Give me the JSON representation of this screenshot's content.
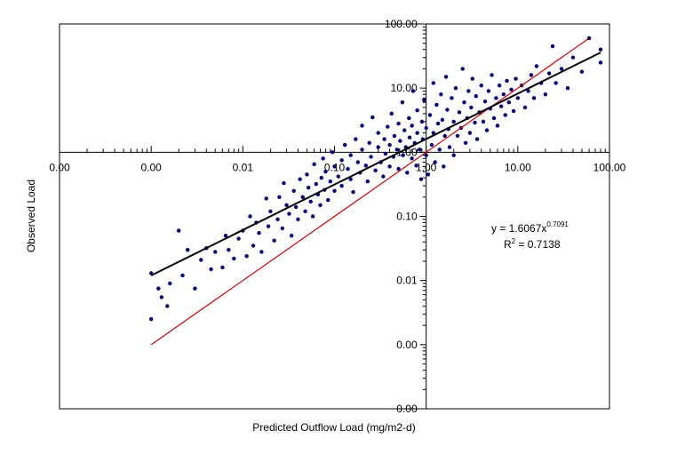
{
  "chart_data": {
    "type": "scatter",
    "title": "",
    "xlabel": "Predicted Outflow Load  (mg/m2-d)",
    "ylabel": "Observed Load",
    "x_scale": "log",
    "y_scale": "log",
    "xlim": [
      0.0001,
      100
    ],
    "ylim": [
      0.0001,
      100
    ],
    "x_ticks": [
      0.0001,
      0.001,
      0.01,
      0.1,
      1,
      10,
      100
    ],
    "x_tick_labels": [
      "0.00",
      "0.00",
      "0.01",
      "0.10",
      "1.00",
      "10.00",
      "100.00"
    ],
    "y_ticks": [
      0.0001,
      0.001,
      0.01,
      0.1,
      1,
      10,
      100
    ],
    "y_tick_labels": [
      "0.00",
      "0.00",
      "0.01",
      "0.10",
      "1.00",
      "10.00",
      "100.00"
    ],
    "grid": false,
    "axes_cross_at": [
      1,
      1
    ],
    "marker_color": "#000080",
    "fit_line": {
      "type": "power",
      "a": 1.6067,
      "b": 0.7091,
      "x_range": [
        0.001,
        80
      ],
      "color": "#000000"
    },
    "identity_line": {
      "x_range": [
        0.001,
        60
      ],
      "color": "#d00000"
    },
    "annotation": {
      "equation_prefix": "y = 1.6067x",
      "equation_exponent": "0.7091",
      "r2_prefix": "R",
      "r2_exponent": "2",
      "r2_suffix": " = 0.7138"
    },
    "series": [
      {
        "points": [
          [
            0.001,
            0.0025
          ],
          [
            0.001,
            0.013
          ],
          [
            0.0012,
            0.0075
          ],
          [
            0.0013,
            0.0055
          ],
          [
            0.0015,
            0.004
          ],
          [
            0.0016,
            0.009
          ],
          [
            0.002,
            0.06
          ],
          [
            0.0022,
            0.012
          ],
          [
            0.0025,
            0.03
          ],
          [
            0.003,
            0.0075
          ],
          [
            0.0035,
            0.021
          ],
          [
            0.004,
            0.032
          ],
          [
            0.0045,
            0.015
          ],
          [
            0.005,
            0.028
          ],
          [
            0.006,
            0.016
          ],
          [
            0.0065,
            0.05
          ],
          [
            0.007,
            0.03
          ],
          [
            0.008,
            0.022
          ],
          [
            0.009,
            0.045
          ],
          [
            0.01,
            0.06
          ],
          [
            0.011,
            0.024
          ],
          [
            0.012,
            0.1
          ],
          [
            0.013,
            0.035
          ],
          [
            0.014,
            0.08
          ],
          [
            0.015,
            0.055
          ],
          [
            0.016,
            0.028
          ],
          [
            0.018,
            0.19
          ],
          [
            0.019,
            0.07
          ],
          [
            0.02,
            0.12
          ],
          [
            0.022,
            0.042
          ],
          [
            0.024,
            0.09
          ],
          [
            0.025,
            0.2
          ],
          [
            0.027,
            0.065
          ],
          [
            0.028,
            0.33
          ],
          [
            0.03,
            0.15
          ],
          [
            0.032,
            0.11
          ],
          [
            0.034,
            0.05
          ],
          [
            0.036,
            0.25
          ],
          [
            0.038,
            0.14
          ],
          [
            0.04,
            0.09
          ],
          [
            0.042,
            0.38
          ],
          [
            0.045,
            0.2
          ],
          [
            0.048,
            0.12
          ],
          [
            0.05,
            0.45
          ],
          [
            0.052,
            0.28
          ],
          [
            0.055,
            0.17
          ],
          [
            0.058,
            0.1
          ],
          [
            0.06,
            0.65
          ],
          [
            0.063,
            0.32
          ],
          [
            0.066,
            0.22
          ],
          [
            0.07,
            0.15
          ],
          [
            0.072,
            0.4
          ],
          [
            0.075,
            0.8
          ],
          [
            0.078,
            0.26
          ],
          [
            0.08,
            0.5
          ],
          [
            0.085,
            0.18
          ],
          [
            0.09,
            0.35
          ],
          [
            0.095,
            1.0
          ],
          [
            0.1,
            0.6
          ],
          [
            0.1,
            0.25
          ],
          [
            0.11,
            0.42
          ],
          [
            0.12,
            0.75
          ],
          [
            0.12,
            0.3
          ],
          [
            0.13,
            1.3
          ],
          [
            0.14,
            0.55
          ],
          [
            0.15,
            0.9
          ],
          [
            0.15,
            0.38
          ],
          [
            0.16,
            0.24
          ],
          [
            0.17,
            1.6
          ],
          [
            0.18,
            0.7
          ],
          [
            0.19,
            0.48
          ],
          [
            0.2,
            1.1
          ],
          [
            0.2,
            2.6
          ],
          [
            0.22,
            0.62
          ],
          [
            0.23,
            0.35
          ],
          [
            0.24,
            1.4
          ],
          [
            0.25,
            0.85
          ],
          [
            0.26,
            3.5
          ],
          [
            0.28,
            0.52
          ],
          [
            0.3,
            1.2
          ],
          [
            0.3,
            2.0
          ],
          [
            0.32,
            0.7
          ],
          [
            0.34,
            0.42
          ],
          [
            0.35,
            1.6
          ],
          [
            0.36,
            0.95
          ],
          [
            0.38,
            2.5
          ],
          [
            0.4,
            1.3
          ],
          [
            0.4,
            0.6
          ],
          [
            0.42,
            4.0
          ],
          [
            0.44,
            0.85
          ],
          [
            0.45,
            1.8
          ],
          [
            0.48,
            1.1
          ],
          [
            0.5,
            2.8
          ],
          [
            0.5,
            0.55
          ],
          [
            0.52,
            1.5
          ],
          [
            0.55,
            6.0
          ],
          [
            0.56,
            0.9
          ],
          [
            0.58,
            2.2
          ],
          [
            0.6,
            1.2
          ],
          [
            0.62,
            0.48
          ],
          [
            0.65,
            3.4
          ],
          [
            0.66,
            1.7
          ],
          [
            0.7,
            0.8
          ],
          [
            0.7,
            2.6
          ],
          [
            0.72,
            9.0
          ],
          [
            0.75,
            1.4
          ],
          [
            0.78,
            0.62
          ],
          [
            0.8,
            4.5
          ],
          [
            0.8,
            2.0
          ],
          [
            0.85,
            1.1
          ],
          [
            0.88,
            0.38
          ],
          [
            0.9,
            3.0
          ],
          [
            0.92,
            1.6
          ],
          [
            0.95,
            6.5
          ],
          [
            1.0,
            0.9
          ],
          [
            1.0,
            2.4
          ],
          [
            1.05,
            0.45
          ],
          [
            1.1,
            3.8
          ],
          [
            1.15,
            1.3
          ],
          [
            1.2,
            12.0
          ],
          [
            1.2,
            2.0
          ],
          [
            1.25,
            0.7
          ],
          [
            1.3,
            5.5
          ],
          [
            1.35,
            2.8
          ],
          [
            1.4,
            1.1
          ],
          [
            1.45,
            8.0
          ],
          [
            1.5,
            3.2
          ],
          [
            1.55,
            0.6
          ],
          [
            1.6,
            1.8
          ],
          [
            1.65,
            15.0
          ],
          [
            1.7,
            4.6
          ],
          [
            1.75,
            2.3
          ],
          [
            1.8,
            1.2
          ],
          [
            1.9,
            7.0
          ],
          [
            2.0,
            3.0
          ],
          [
            2.0,
            0.9
          ],
          [
            2.1,
            10.0
          ],
          [
            2.2,
            1.8
          ],
          [
            2.3,
            4.2
          ],
          [
            2.4,
            2.4
          ],
          [
            2.5,
            20.0
          ],
          [
            2.6,
            6.0
          ],
          [
            2.7,
            1.4
          ],
          [
            2.8,
            3.4
          ],
          [
            2.9,
            9.0
          ],
          [
            3.0,
            2.0
          ],
          [
            3.1,
            5.0
          ],
          [
            3.2,
            14.0
          ],
          [
            3.4,
            2.9
          ],
          [
            3.5,
            7.5
          ],
          [
            3.6,
            1.6
          ],
          [
            3.8,
            4.2
          ],
          [
            4.0,
            11.0
          ],
          [
            4.2,
            3.0
          ],
          [
            4.4,
            6.2
          ],
          [
            4.6,
            2.2
          ],
          [
            4.8,
            9.0
          ],
          [
            5.0,
            4.8
          ],
          [
            5.2,
            16.0
          ],
          [
            5.5,
            3.4
          ],
          [
            5.8,
            7.0
          ],
          [
            6.0,
            2.6
          ],
          [
            6.3,
            11.0
          ],
          [
            6.6,
            5.2
          ],
          [
            7.0,
            8.0
          ],
          [
            7.3,
            3.8
          ],
          [
            7.6,
            13.0
          ],
          [
            8.0,
            6.0
          ],
          [
            8.5,
            9.5
          ],
          [
            9.0,
            4.4
          ],
          [
            9.5,
            14.0
          ],
          [
            10.0,
            7.0
          ],
          [
            11.0,
            11.0
          ],
          [
            12.0,
            5.0
          ],
          [
            13.0,
            9.0
          ],
          [
            14.0,
            16.0
          ],
          [
            15.0,
            7.0
          ],
          [
            16.0,
            22.0
          ],
          [
            18.0,
            12.0
          ],
          [
            20.0,
            8.0
          ],
          [
            22.0,
            17.0
          ],
          [
            24.0,
            45.0
          ],
          [
            26.0,
            12.0
          ],
          [
            30.0,
            20.0
          ],
          [
            35.0,
            10.0
          ],
          [
            40.0,
            30.0
          ],
          [
            50.0,
            18.0
          ],
          [
            60.0,
            60.0
          ],
          [
            80.0,
            25.0
          ],
          [
            80.0,
            40.0
          ]
        ]
      }
    ]
  }
}
